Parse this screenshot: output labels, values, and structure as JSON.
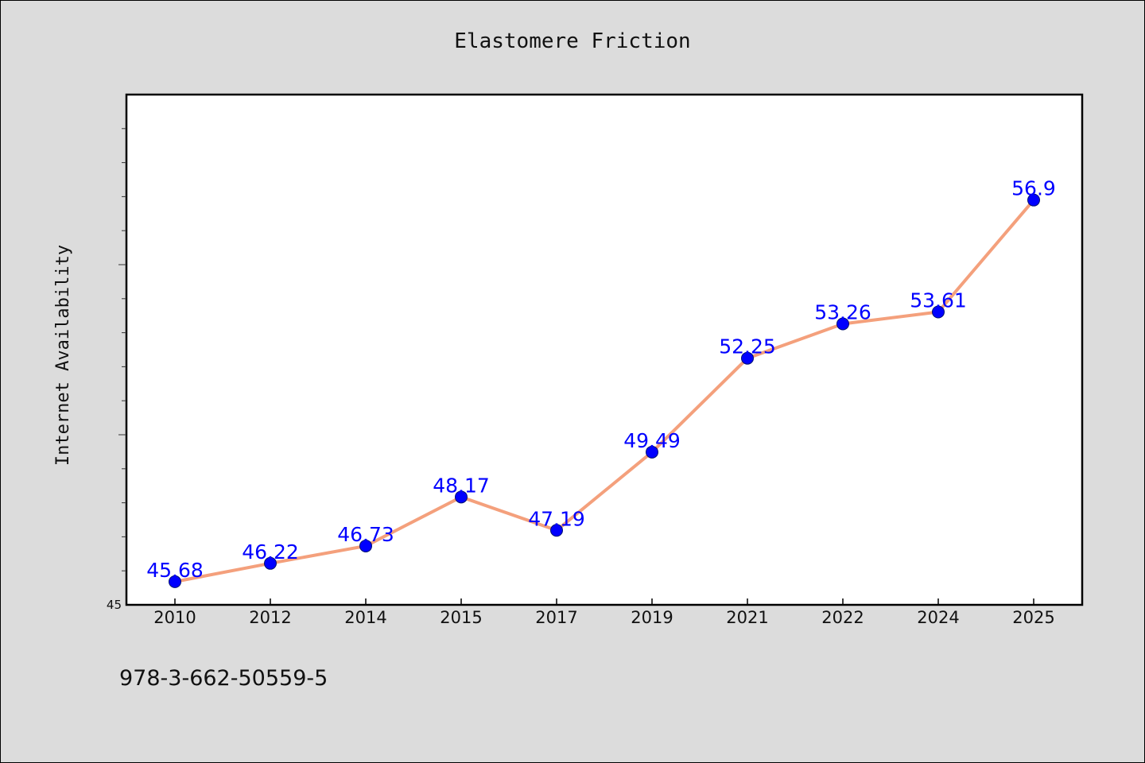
{
  "chart_data": {
    "type": "line",
    "title": "Elastomere Friction",
    "xlabel": "",
    "ylabel": "Internet Availability",
    "categories": [
      "2010",
      "2012",
      "2014",
      "2015",
      "2017",
      "2019",
      "2021",
      "2022",
      "2024",
      "2025"
    ],
    "series": [
      {
        "values": [
          45.68,
          46.22,
          46.73,
          48.17,
          47.19,
          49.49,
          52.25,
          53.26,
          53.61,
          56.9
        ],
        "data_labels": [
          "45.68",
          "46.22",
          "46.73",
          "48.17",
          "47.19",
          "49.49",
          "52.25",
          "53.26",
          "53.61",
          "56.9"
        ]
      }
    ],
    "ylim": [
      45,
      60
    ],
    "y_tick_labels": [
      "45"
    ],
    "grid": false,
    "line_color": "#f4a07c",
    "marker_color": "#0000ff",
    "label_color": "#0000ff"
  },
  "footer_text": "978-3-662-50559-5"
}
